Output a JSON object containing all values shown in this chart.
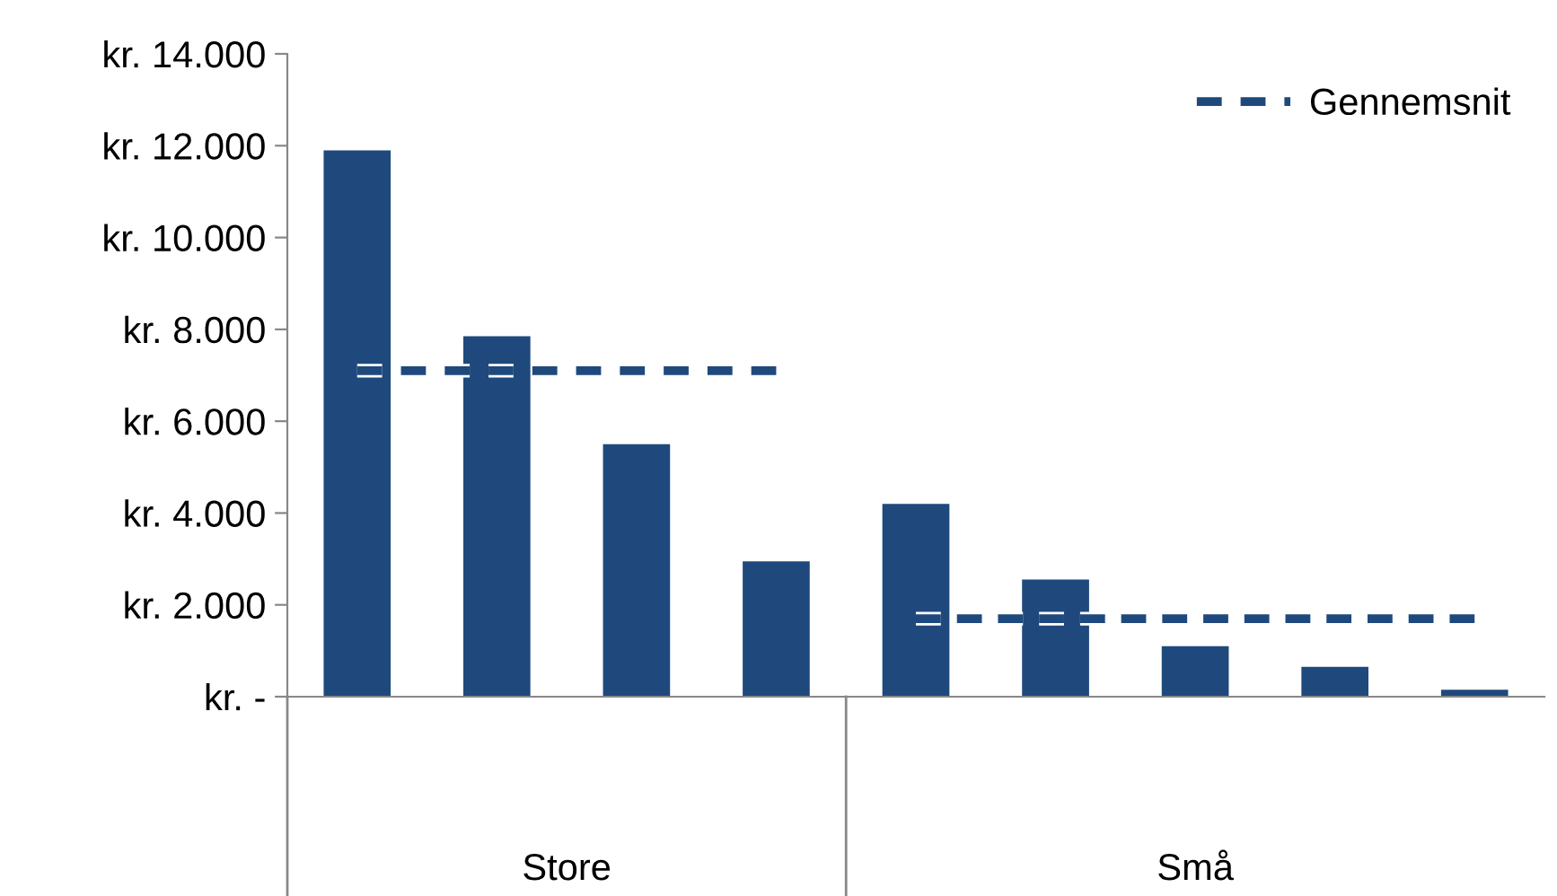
{
  "chart_data": {
    "type": "bar",
    "categories": [
      null,
      null,
      null,
      null,
      null,
      null,
      null,
      null,
      null
    ],
    "series": [
      {
        "color": "#1f497d",
        "values": [
          11900,
          7850,
          5500,
          2950,
          4200,
          2550,
          1100,
          650,
          150
        ]
      },
      {
        "type": "line",
        "name": "Gennemsnit",
        "color": "#1f497d",
        "line_style": "dashed",
        "values": [
          7100,
          7100,
          7100,
          7100,
          null,
          null,
          null,
          null,
          null
        ]
      },
      {
        "type": "line",
        "color": "#1f497d",
        "line_style": "dashed",
        "values": [
          null,
          null,
          null,
          null,
          1700,
          1700,
          1700,
          1700,
          1700
        ]
      }
    ],
    "annotations": [
      "Store",
      "Små"
    ],
    "ylim": [
      0,
      14000
    ],
    "yticks": [
      {
        "value": 0,
        "label": "kr. -"
      },
      {
        "value": 2000,
        "label": "kr. 2.000"
      },
      {
        "value": 4000,
        "label": "kr. 4.000"
      },
      {
        "value": 6000,
        "label": "kr. 6.000"
      },
      {
        "value": 8000,
        "label": "kr. 8.000"
      },
      {
        "value": 10000,
        "label": "kr. 10.000"
      },
      {
        "value": 12000,
        "label": "kr. 12.000"
      },
      {
        "value": 14000,
        "label": "kr. 14.000"
      }
    ],
    "grid": false,
    "legend": "top right"
  }
}
